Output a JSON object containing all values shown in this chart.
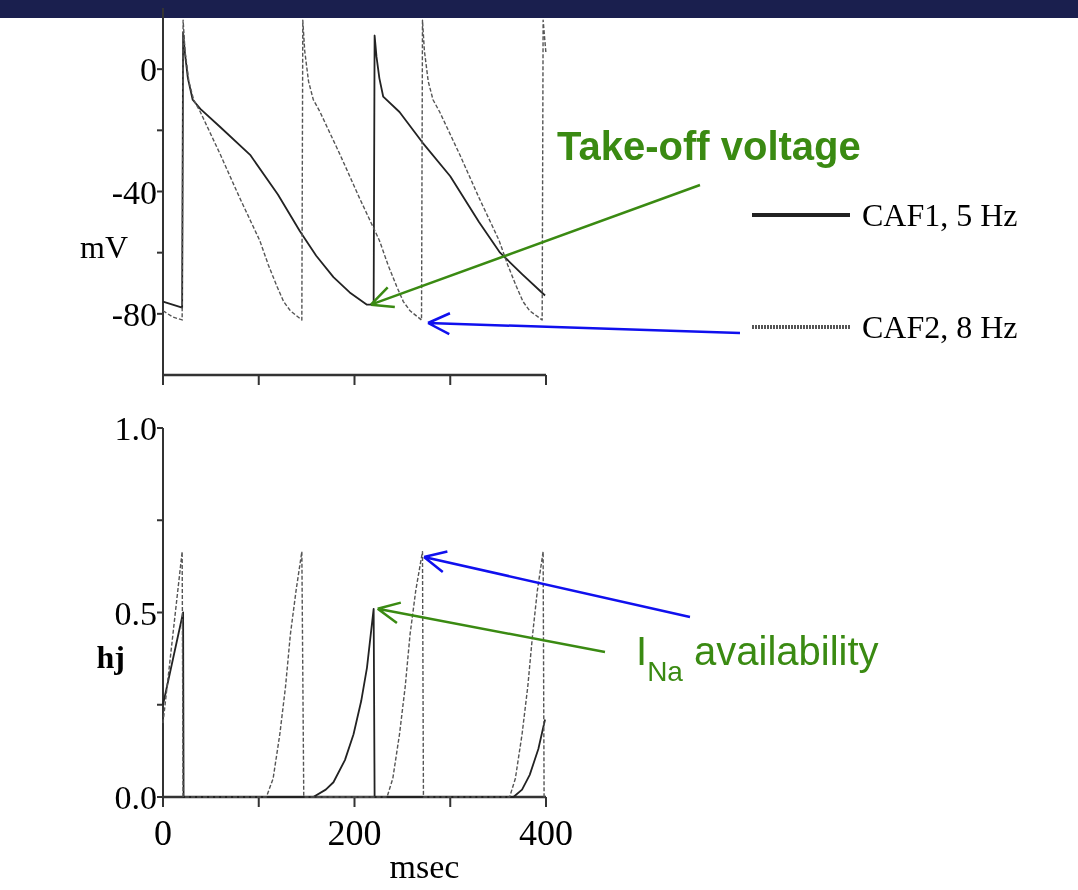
{
  "chart_data": [
    {
      "type": "line",
      "ylabel": "mV",
      "xlim": [
        0,
        400
      ],
      "ylim": [
        -100,
        20
      ],
      "xticks": [
        {
          "value": 0,
          "label": null
        },
        {
          "value": 100,
          "label": null
        },
        {
          "value": 200,
          "label": null
        },
        {
          "value": 300,
          "label": null
        },
        {
          "value": 400,
          "label": null
        }
      ],
      "yticks": [
        -80,
        {
          "value": -60,
          "label": null
        },
        -40,
        {
          "value": -20,
          "label": null
        },
        0
      ],
      "tick_labels": "y",
      "legend": "right",
      "grid": false,
      "series": [
        {
          "name": "CAF1, 5 Hz",
          "color": "#222222",
          "line_style": "solid",
          "x": [
            0,
            10,
            20,
            21,
            23,
            26,
            31,
            39,
            60,
            91,
            120,
            143,
            160,
            178,
            195,
            213,
            220,
            221,
            223,
            226,
            230,
            247,
            271,
            300,
            330,
            352,
            375,
            399
          ],
          "values": [
            -76,
            -77,
            -78,
            12,
            5,
            -3,
            -10,
            -13,
            -19,
            -28,
            -41,
            -53,
            -61,
            -68,
            -73,
            -77,
            -77,
            11,
            4,
            -3,
            -9,
            -14,
            -24,
            -35,
            -50,
            -60,
            -67,
            -74
          ]
        },
        {
          "name": "CAF2, 8 Hz",
          "color": "#555555",
          "line_style": "dashed",
          "x": [
            0,
            10,
            20,
            21,
            23,
            27,
            32,
            39,
            60,
            80,
            101,
            110,
            119,
            126,
            133,
            145,
            146,
            148,
            152,
            157,
            164,
            185,
            205,
            226,
            235,
            244,
            251,
            258,
            270,
            271,
            273,
            277,
            282,
            289,
            310,
            330,
            351,
            360,
            369,
            376,
            383,
            396,
            397,
            400
          ],
          "values": [
            -79,
            -81,
            -82,
            16,
            6,
            -4,
            -10,
            -14,
            -28,
            -42,
            -56,
            -64,
            -71,
            -76,
            -79,
            -82,
            16,
            6,
            -4,
            -10,
            -14,
            -28,
            -42,
            -56,
            -64,
            -71,
            -76,
            -79,
            -82,
            16,
            6,
            -4,
            -10,
            -14,
            -28,
            -42,
            -56,
            -64,
            -71,
            -76,
            -79,
            -82,
            16,
            5
          ]
        }
      ],
      "annotations": [
        {
          "text": "Take-off voltage",
          "x": 213,
          "y": -77
        }
      ]
    },
    {
      "type": "line",
      "ylabel": "hj",
      "xlabel": "msec",
      "xlim": [
        0,
        400
      ],
      "ylim": [
        0,
        1
      ],
      "xticks": [
        0,
        {
          "value": 100,
          "label": null
        },
        200,
        {
          "value": 300,
          "label": null
        },
        400
      ],
      "yticks": [
        "0.0",
        {
          "value": 0.25,
          "label": null
        },
        {
          "value": 0.5,
          "label": "0.5"
        },
        {
          "value": 0.75,
          "label": null
        },
        {
          "value": 1,
          "label": "1.0"
        }
      ],
      "grid": false,
      "series": [
        {
          "color": "#222222",
          "line_style": "solid",
          "x": [
            0,
            21,
            21.5,
            157,
            170,
            178,
            190,
            199,
            207,
            213,
            220,
            221,
            366,
            375,
            383,
            392,
            399
          ],
          "values": [
            0.25,
            0.5,
            0,
            0,
            0.02,
            0.04,
            0.1,
            0.17,
            0.26,
            0.35,
            0.51,
            0,
            0,
            0.02,
            0.06,
            0.13,
            0.21
          ]
        },
        {
          "color": "#555555",
          "line_style": "dashed",
          "x": [
            0,
            20,
            21,
            108,
            115,
            122,
            128,
            133,
            139,
            145,
            147,
            234,
            240,
            247,
            253,
            258,
            264,
            271,
            272,
            362,
            368,
            375,
            381,
            386,
            391,
            397,
            398,
            400
          ],
          "values": [
            0.2,
            0.665,
            0,
            0,
            0.05,
            0.17,
            0.3,
            0.44,
            0.56,
            0.665,
            0,
            0,
            0.05,
            0.17,
            0.3,
            0.44,
            0.56,
            0.665,
            0,
            0,
            0.05,
            0.17,
            0.3,
            0.44,
            0.56,
            0.665,
            0,
            0
          ]
        }
      ],
      "annotations": [
        {
          "text": "I$_{Na}$ availability",
          "x": 220,
          "y": 0.51
        }
      ]
    }
  ]
}
